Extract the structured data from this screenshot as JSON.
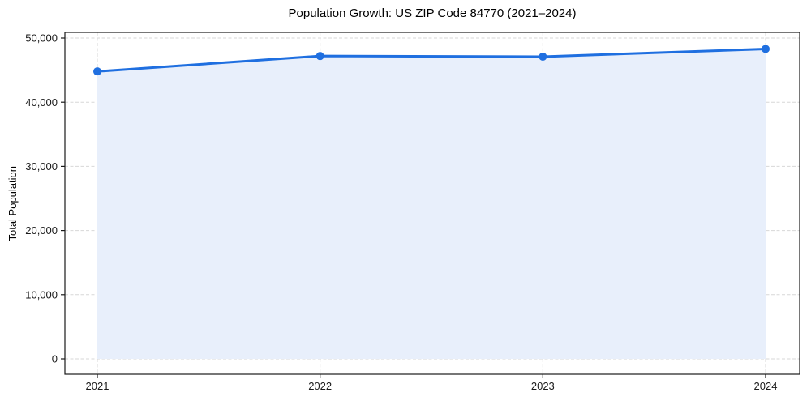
{
  "chart_data": {
    "type": "line",
    "title": "Population Growth: US ZIP Code 84770 (2021–2024)",
    "xlabel": "",
    "ylabel": "Total Population",
    "categories": [
      "2021",
      "2022",
      "2023",
      "2024"
    ],
    "values": [
      44800,
      47200,
      47100,
      48300
    ],
    "ylim": [
      0,
      50000
    ],
    "yticks": [
      0,
      10000,
      20000,
      30000,
      40000,
      50000
    ],
    "grid": true,
    "legend": "none",
    "area_fill": true,
    "line_color": "#1f6fe0",
    "fill_color": "#e8effb",
    "marker": "circle",
    "background_color": "#ffffff"
  }
}
